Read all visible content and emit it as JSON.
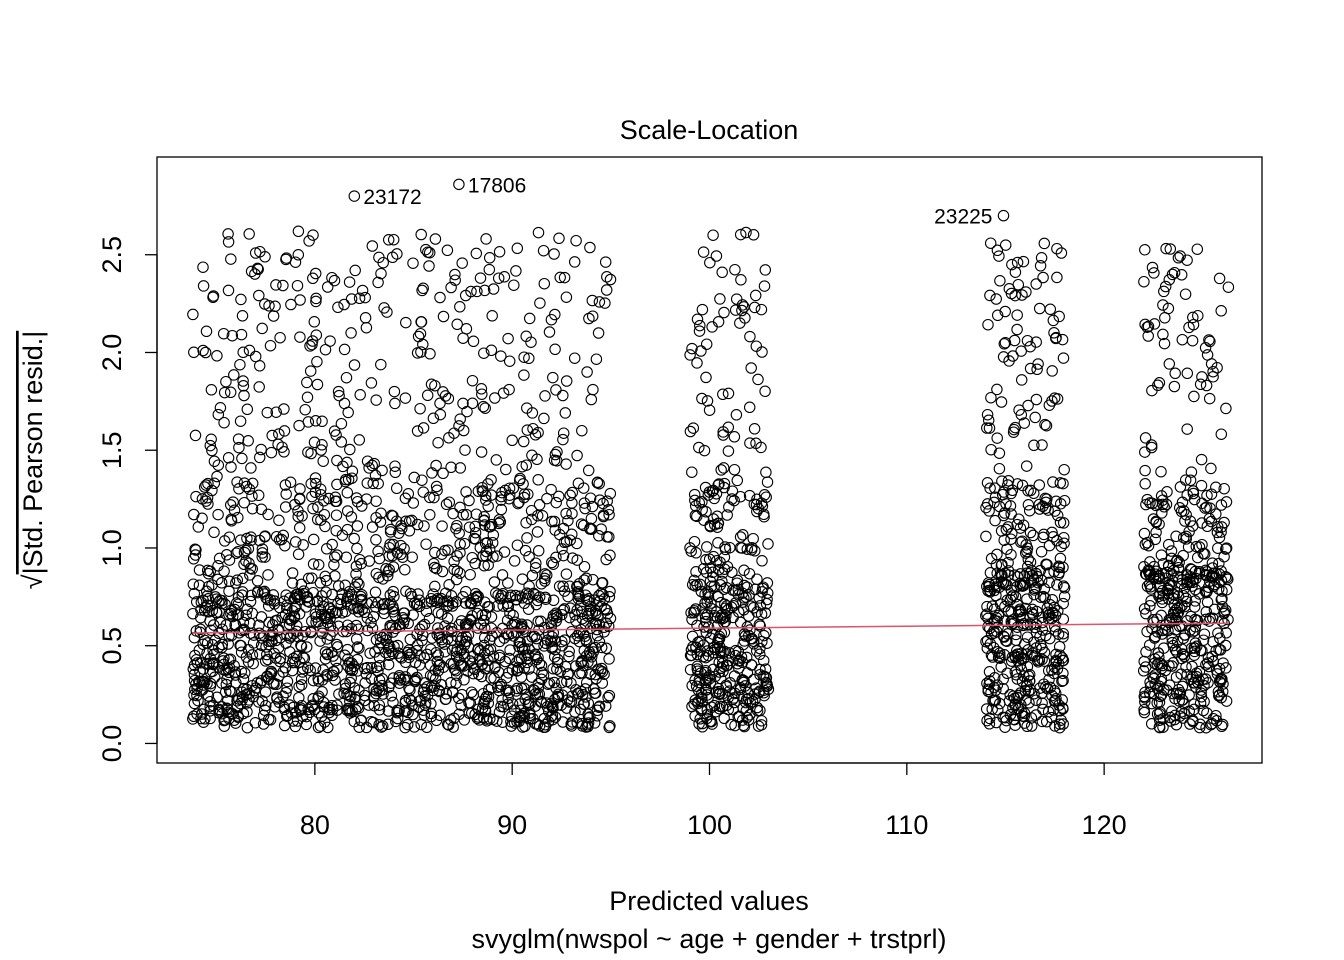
{
  "chart_data": {
    "type": "scatter",
    "title": "Scale-Location",
    "xlabel": "Predicted values",
    "subtitle": "svyglm(nwspol ~ age + gender + trstprl)",
    "ylabel_sqrt_symbol": "√",
    "ylabel": "|Std. Pearson resid.|",
    "xlim": [
      72,
      128
    ],
    "ylim": [
      -0.1,
      3.0
    ],
    "x_ticks": [
      80,
      90,
      100,
      110,
      120
    ],
    "x_tick_labels": [
      "80",
      "90",
      "100",
      "110",
      "120"
    ],
    "y_ticks": [
      0.0,
      0.5,
      1.0,
      1.5,
      2.0,
      2.5
    ],
    "y_tick_labels": [
      "0.0",
      "0.5",
      "1.0",
      "1.5",
      "2.0",
      "2.5"
    ],
    "point_clusters": [
      {
        "x_range": [
          73.8,
          95.0
        ],
        "dense_y_max": 0.78
      },
      {
        "x_range": [
          99.0,
          103.0
        ],
        "dense_y_max": 0.82
      },
      {
        "x_range": [
          114.0,
          118.0
        ],
        "dense_y_max": 0.88
      },
      {
        "x_range": [
          122.0,
          126.3
        ],
        "dense_y_max": 0.9
      }
    ],
    "smoother": {
      "color": "#DF536B",
      "x": [
        73.8,
        80,
        90,
        100,
        110,
        120,
        126.3
      ],
      "y": [
        0.565,
        0.572,
        0.58,
        0.59,
        0.6,
        0.61,
        0.615
      ]
    },
    "labeled_points": [
      {
        "label": "23172",
        "x": 82.0,
        "y": 2.8
      },
      {
        "label": "17806",
        "x": 87.3,
        "y": 2.86
      },
      {
        "label": "23225",
        "x": 114.9,
        "y": 2.7
      }
    ],
    "marker_color": "#000000",
    "marker": "open-circle",
    "grid": false
  }
}
